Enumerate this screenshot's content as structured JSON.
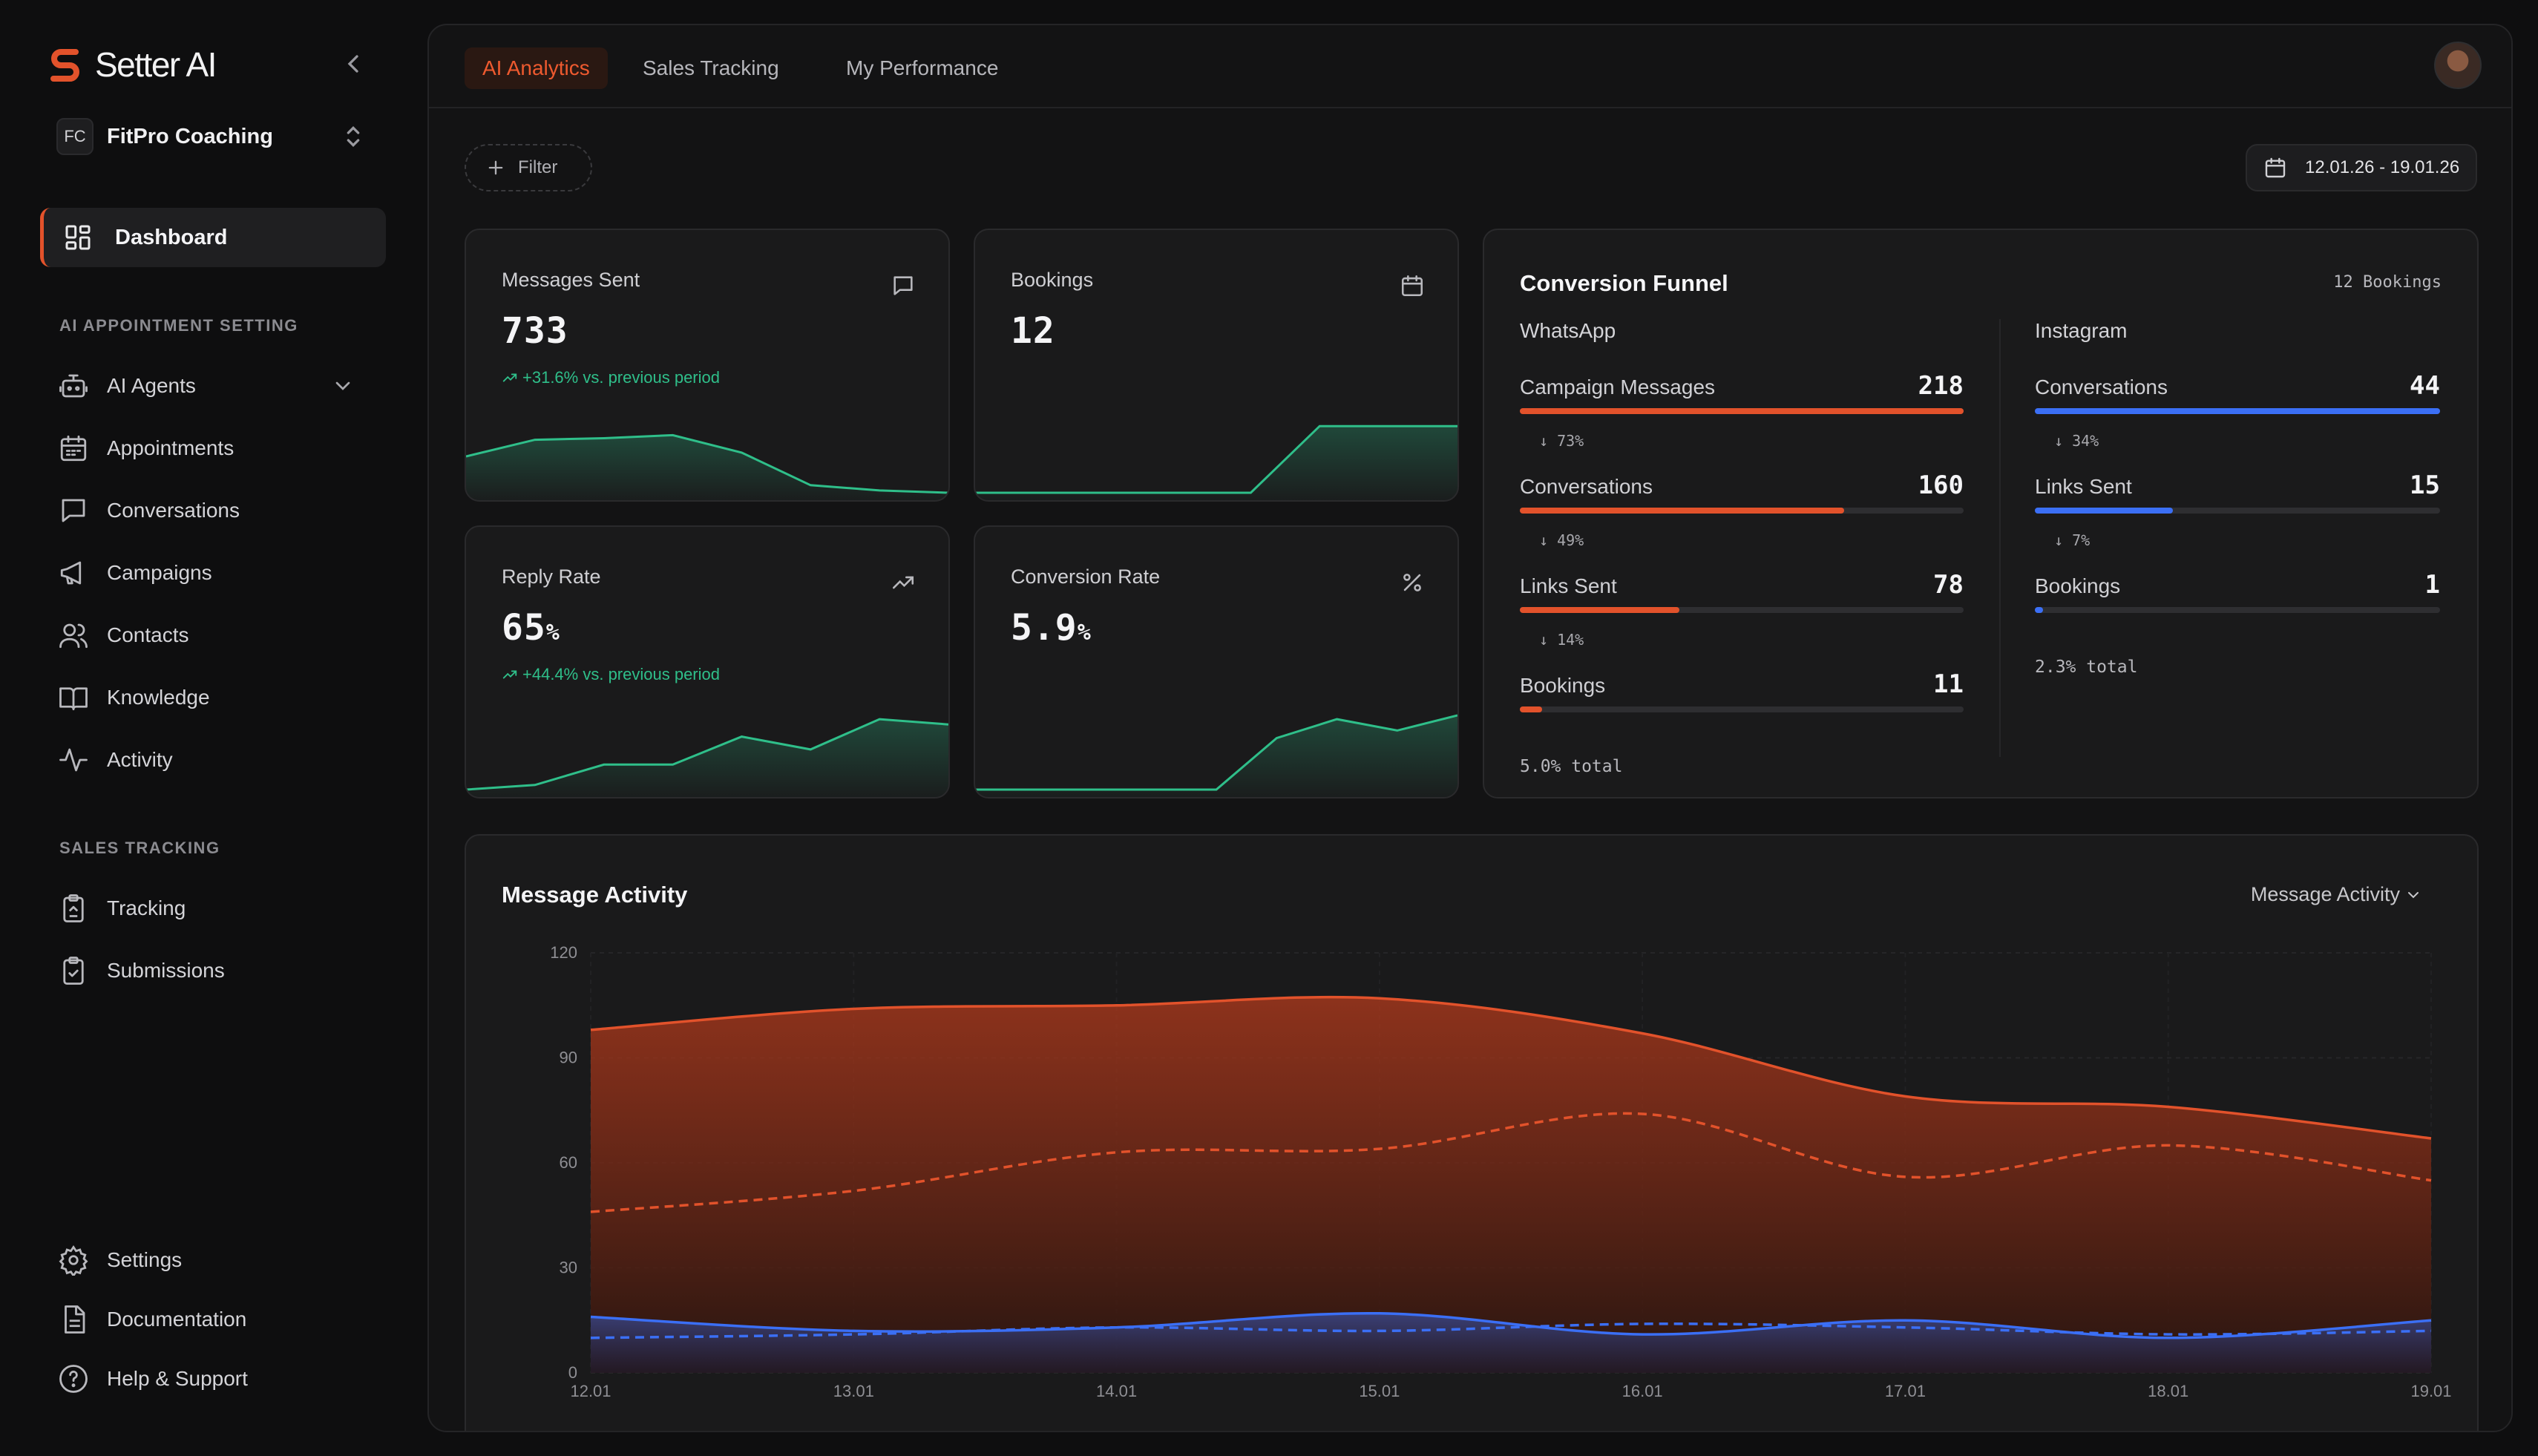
{
  "brand": {
    "name": "Setter AI",
    "accent": "#e2522b"
  },
  "workspace": {
    "initials": "FC",
    "name": "FitPro Coaching"
  },
  "sidebar": {
    "dashboard_label": "Dashboard",
    "section_ai": "AI APPOINTMENT SETTING",
    "ai_items": [
      {
        "label": "AI Agents",
        "icon": "robot-icon"
      },
      {
        "label": "Appointments",
        "icon": "calendar-icon"
      },
      {
        "label": "Conversations",
        "icon": "chat-icon"
      },
      {
        "label": "Campaigns",
        "icon": "megaphone-icon"
      },
      {
        "label": "Contacts",
        "icon": "users-icon"
      },
      {
        "label": "Knowledge",
        "icon": "book-icon"
      },
      {
        "label": "Activity",
        "icon": "pulse-icon"
      }
    ],
    "section_sales": "SALES TRACKING",
    "sales_items": [
      {
        "label": "Tracking",
        "icon": "clipboard-icon"
      },
      {
        "label": "Submissions",
        "icon": "clipboard-check-icon"
      }
    ],
    "bottom_items": [
      {
        "label": "Settings",
        "icon": "gear-icon"
      },
      {
        "label": "Documentation",
        "icon": "document-icon"
      },
      {
        "label": "Help & Support",
        "icon": "help-icon"
      }
    ]
  },
  "tabs": [
    "AI Analytics",
    "Sales Tracking",
    "My Performance"
  ],
  "active_tab": "AI Analytics",
  "toolbar": {
    "filter_label": "Filter",
    "date_range": "12.01.26 - 19.01.26"
  },
  "kpis": {
    "messages": {
      "title": "Messages Sent",
      "value": "733",
      "trend": "+31.6% vs. previous period",
      "icon": "message-icon",
      "spark": [
        0.5,
        0.72,
        0.74,
        0.78,
        0.55,
        0.12,
        0.05,
        0.02
      ]
    },
    "bookings": {
      "title": "Bookings",
      "value": "12",
      "icon": "calendar-icon",
      "spark": [
        0.02,
        0.02,
        0.02,
        0.02,
        0.02,
        0.9,
        0.9,
        0.9
      ]
    },
    "reply": {
      "title": "Reply Rate",
      "value": "65",
      "unit": "%",
      "trend": "+44.4% vs. previous period",
      "icon": "trending-up-icon",
      "spark": [
        0.02,
        0.08,
        0.35,
        0.35,
        0.72,
        0.55,
        0.95,
        0.88
      ]
    },
    "conversion": {
      "title": "Conversion Rate",
      "value": "5.9",
      "unit": "%",
      "icon": "percent-icon",
      "spark": [
        0.02,
        0.02,
        0.02,
        0.02,
        0.02,
        0.7,
        0.95,
        0.8,
        1.0
      ]
    }
  },
  "funnel": {
    "title": "Conversion Funnel",
    "badge": "12 Bookings",
    "whatsapp": {
      "channel": "WhatsApp",
      "color": "#e2522b",
      "rows": [
        {
          "label": "Campaign Messages",
          "value": "218",
          "fraction": 1.0,
          "drop": "73%"
        },
        {
          "label": "Conversations",
          "value": "160",
          "fraction": 0.73,
          "drop": "49%"
        },
        {
          "label": "Links Sent",
          "value": "78",
          "fraction": 0.36,
          "drop": "14%"
        },
        {
          "label": "Bookings",
          "value": "11",
          "fraction": 0.05
        }
      ],
      "total": "5.0% total"
    },
    "instagram": {
      "channel": "Instagram",
      "color": "#3b6ff5",
      "rows": [
        {
          "label": "Conversations",
          "value": "44",
          "fraction": 1.0,
          "drop": "34%"
        },
        {
          "label": "Links Sent",
          "value": "15",
          "fraction": 0.34,
          "drop": "7%"
        },
        {
          "label": "Bookings",
          "value": "1",
          "fraction": 0.02
        }
      ],
      "total": "2.3% total"
    }
  },
  "activity": {
    "title": "Message Activity",
    "select_label": "Message Activity"
  },
  "chart_data": {
    "type": "area",
    "title": "Message Activity",
    "x": [
      "12.01",
      "13.01",
      "14.01",
      "15.01",
      "16.01",
      "17.01",
      "18.01",
      "19.01"
    ],
    "ylim": [
      0,
      120
    ],
    "yticks": [
      0,
      30,
      60,
      90,
      120
    ],
    "grid": true,
    "series": [
      {
        "color": "#e2522b",
        "style": "solid",
        "fill": true,
        "values": [
          98,
          104,
          105,
          107,
          97,
          79,
          76,
          67
        ]
      },
      {
        "color": "#e2522b",
        "style": "dashed",
        "fill": false,
        "values": [
          46,
          52,
          63,
          64,
          74,
          56,
          65,
          55
        ]
      },
      {
        "color": "#3b6ff5",
        "style": "solid",
        "fill": true,
        "values": [
          16,
          12,
          13,
          17,
          11,
          15,
          10,
          15
        ]
      },
      {
        "color": "#3b6ff5",
        "style": "dashed",
        "fill": false,
        "values": [
          10,
          11,
          13,
          12,
          14,
          13,
          11,
          12
        ]
      }
    ]
  }
}
